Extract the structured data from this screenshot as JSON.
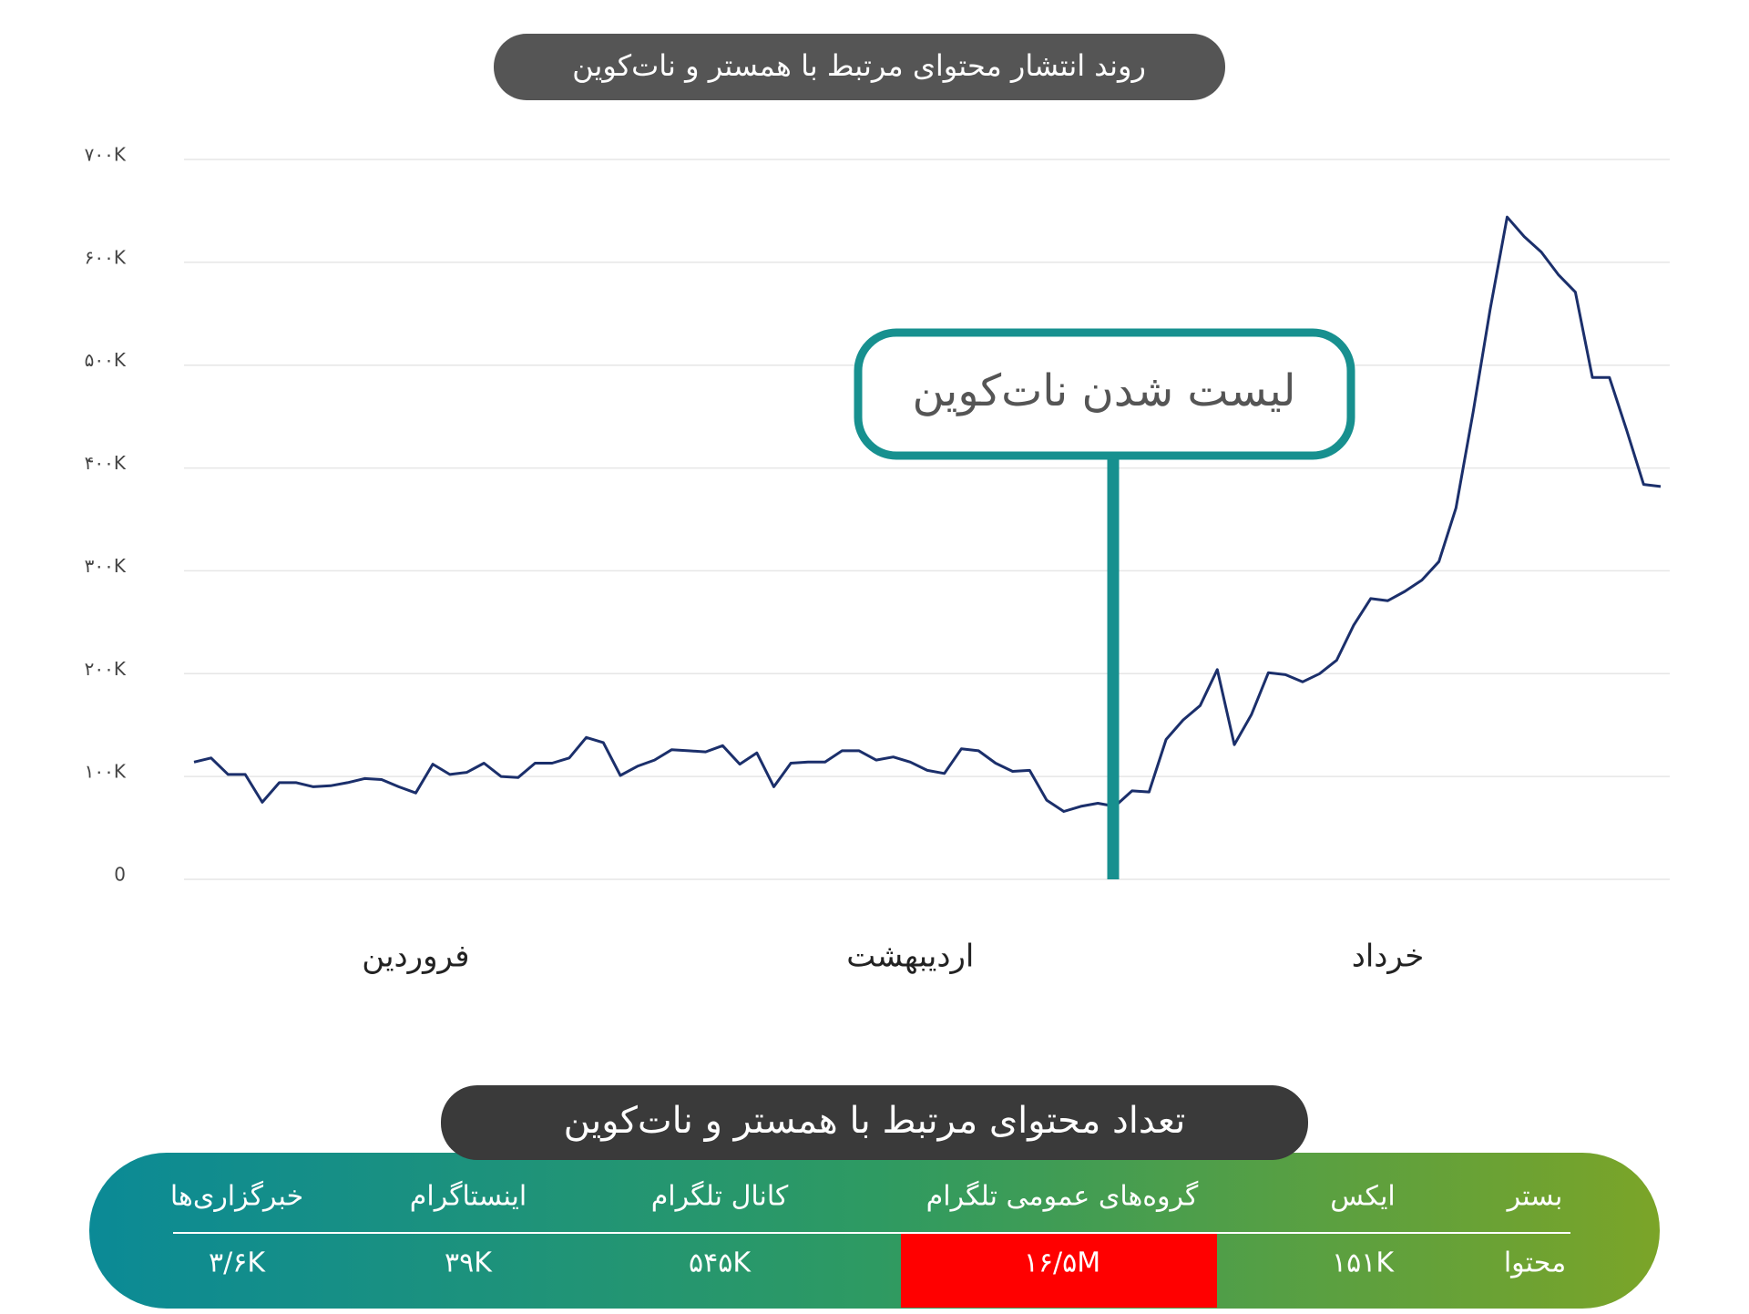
{
  "chart_data": {
    "type": "line",
    "title": "روند انتشار محتوای مرتبط با همستر و نات‌کوین",
    "annotation": "لیست شدن نات‌کوین",
    "categories": [
      null,
      null,
      null,
      null,
      null,
      null,
      null,
      null,
      null,
      null,
      null,
      null,
      null,
      "فروردین",
      null,
      null,
      null,
      null,
      null,
      null,
      null,
      null,
      null,
      null,
      null,
      null,
      null,
      null,
      null,
      null,
      null,
      null,
      null,
      null,
      null,
      null,
      null,
      null,
      null,
      null,
      null,
      null,
      "اردیبهشت",
      null,
      null,
      null,
      null,
      null,
      null,
      null,
      null,
      null,
      null,
      null,
      null,
      null,
      null,
      null,
      null,
      null,
      null,
      null,
      null,
      null,
      null,
      null,
      null,
      null,
      null,
      null,
      "خرداد",
      null,
      null,
      null,
      null,
      null,
      null,
      null,
      null,
      null,
      null,
      null,
      null,
      null,
      null,
      null,
      null
    ],
    "series": [
      {
        "color": "#1b2f6b",
        "values": [
          114000,
          118000,
          102000,
          102000,
          75000,
          94000,
          94000,
          90000,
          91000,
          94000,
          98000,
          97000,
          90000,
          84000,
          112000,
          102000,
          104000,
          113000,
          100000,
          99000,
          113000,
          113000,
          118000,
          138000,
          133000,
          101000,
          110000,
          116000,
          126000,
          125000,
          124000,
          130000,
          112000,
          123000,
          90000,
          113000,
          114000,
          114000,
          125000,
          125000,
          116000,
          119000,
          114000,
          106000,
          103000,
          127000,
          125000,
          113000,
          105000,
          106000,
          77000,
          66000,
          71000,
          74000,
          71000,
          86000,
          85000,
          136000,
          155000,
          169000,
          204000,
          131000,
          160000,
          201000,
          199000,
          192000,
          200000,
          213000,
          247000,
          273000,
          271000,
          280000,
          291000,
          309000,
          361000,
          454000,
          554000,
          644000,
          625000,
          610000,
          588000,
          571000,
          488000,
          488000,
          437000,
          384000,
          382000
        ]
      }
    ],
    "ylim": [
      0,
      700000
    ],
    "yticks": [
      {
        "value": 0,
        "label": "0"
      },
      {
        "value": 100000,
        "label": "۱۰۰K"
      },
      {
        "value": 200000,
        "label": "۲۰۰K"
      },
      {
        "value": 300000,
        "label": "۳۰۰K"
      },
      {
        "value": 400000,
        "label": "۴۰۰K"
      },
      {
        "value": 500000,
        "label": "۵۰۰K"
      },
      {
        "value": 600000,
        "label": "۶۰۰K"
      },
      {
        "value": 700000,
        "label": "۷۰۰K"
      }
    ],
    "grid": true
  },
  "table": {
    "title": "تعداد محتوای مرتبط با همستر و نات‌کوین",
    "headers": [
      "بستر",
      "ایکس",
      "گروه‌های عمومی تلگرام",
      "کانال تلگرام",
      "اینستاگرام",
      "خبرگزاری‌ها"
    ],
    "rows": [
      [
        "محتوا",
        "۱۵۱K",
        "۱۶/۵M",
        "۵۴۵K",
        "۳۹K",
        "۳/۶K"
      ]
    ]
  }
}
